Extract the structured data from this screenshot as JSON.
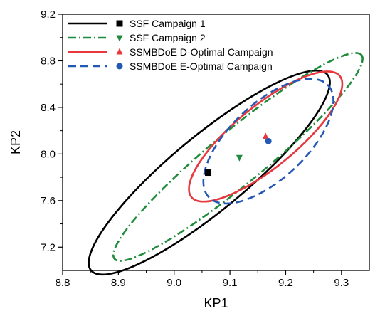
{
  "chart_data": {
    "type": "scatter",
    "title": "",
    "xlabel": "KP1",
    "ylabel": "KP2",
    "xlim": [
      8.8,
      9.35
    ],
    "ylim": [
      7.0,
      9.2
    ],
    "xticks": [
      "8.8",
      "8.9",
      "9.0",
      "9.1",
      "9.2",
      "9.3"
    ],
    "yticks": [
      "7.2",
      "7.6",
      "8.0",
      "8.4",
      "8.8",
      "9.2"
    ],
    "legend_position": "top-left",
    "grid": false,
    "series": [
      {
        "name": "SSF Campaign 1",
        "color": "#000000",
        "line_style": "solid",
        "marker": "square",
        "center": [
          9.061,
          7.84
        ],
        "ellipse": {
          "tip_low": [
            8.851,
            7.0
          ],
          "tip_high": [
            9.275,
            8.68
          ],
          "half_width": 0.175
        }
      },
      {
        "name": "SSF Campaign 2",
        "color": "#1e8c3a",
        "line_style": "dashdot",
        "marker": "triangle-down",
        "center": [
          9.117,
          7.97
        ],
        "ellipse": {
          "tip_low": [
            8.893,
            7.1
          ],
          "tip_high": [
            9.336,
            8.85
          ],
          "half_width": 0.125
        }
      },
      {
        "name": "SSMBDoE D-Optimal Campaign",
        "color": "#e8383d",
        "line_style": "solid",
        "marker": "triangle-up",
        "center": [
          9.164,
          8.15
        ],
        "ellipse": {
          "tip_low": [
            9.031,
            7.63
          ],
          "tip_high": [
            9.297,
            8.67
          ],
          "half_width": 0.145
        }
      },
      {
        "name": "SSMBDoE E-Optimal Campaign",
        "color": "#2458b5",
        "line_style": "dashed",
        "marker": "circle",
        "center": [
          9.169,
          8.11
        ],
        "ellipse": {
          "tip_low": [
            9.062,
            7.63
          ],
          "tip_high": [
            9.276,
            8.59
          ],
          "half_width": 0.165
        }
      }
    ]
  }
}
